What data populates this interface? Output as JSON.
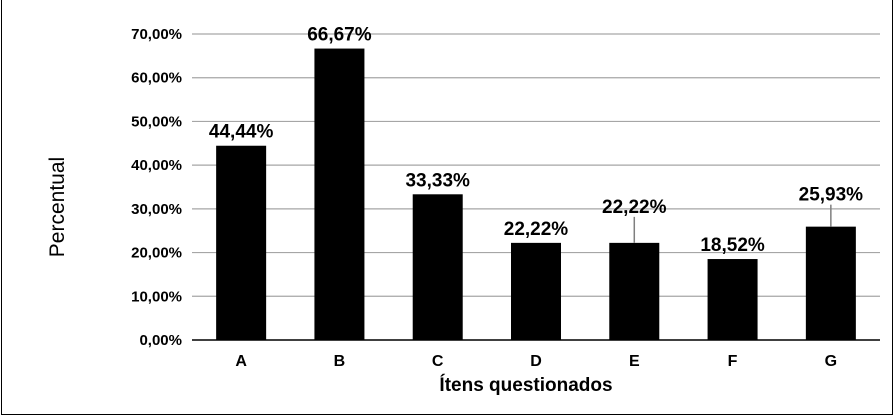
{
  "chart_data": {
    "type": "bar",
    "categories": [
      "A",
      "B",
      "C",
      "D",
      "E",
      "F",
      "G"
    ],
    "values": [
      44.44,
      66.67,
      33.33,
      22.22,
      22.22,
      18.52,
      25.93
    ],
    "data_labels": [
      "44,44%",
      "66,67%",
      "33,33%",
      "22,22%",
      "22,22%",
      "18,52%",
      "25,93%"
    ],
    "yticks": [
      "0,00%",
      "10,00%",
      "20,00%",
      "30,00%",
      "40,00%",
      "50,00%",
      "60,00%",
      "70,00%"
    ],
    "ylim": [
      0,
      70
    ],
    "xlabel": "Ítens questionados",
    "ylabel": "Percentual",
    "grid": true,
    "bar_color": "#000000",
    "grid_color": "#a6a6a6"
  }
}
